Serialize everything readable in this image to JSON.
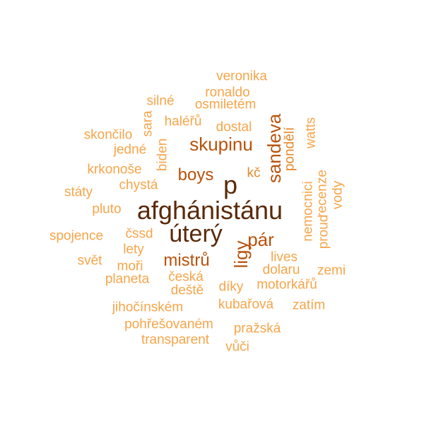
{
  "colors": {
    "level1": "#f6a54a",
    "level2": "#e3892b",
    "level3": "#b8520c",
    "level4": "#5a2a0a"
  },
  "words": [
    {
      "text": "afghánistánu",
      "weight": 1.0,
      "color_level": 4,
      "vertical": false
    },
    {
      "text": "úterý",
      "weight": 0.95,
      "color_level": 4,
      "vertical": false
    },
    {
      "text": "p",
      "weight": 0.9,
      "color_level": 4,
      "vertical": false
    },
    {
      "text": "pár",
      "weight": 0.75,
      "color_level": 3,
      "vertical": false
    },
    {
      "text": "ligy",
      "weight": 0.75,
      "color_level": 3,
      "vertical": true
    },
    {
      "text": "sandeva",
      "weight": 0.7,
      "color_level": 3,
      "vertical": true
    },
    {
      "text": "skupinu",
      "weight": 0.65,
      "color_level": 3,
      "vertical": false
    },
    {
      "text": "boys",
      "weight": 0.65,
      "color_level": 3,
      "vertical": false
    },
    {
      "text": "mistrů",
      "weight": 0.65,
      "color_level": 3,
      "vertical": false
    },
    {
      "text": "veronika",
      "weight": 0.35,
      "color_level": 1,
      "vertical": false
    },
    {
      "text": "ronaldo",
      "weight": 0.35,
      "color_level": 1,
      "vertical": false
    },
    {
      "text": "osmiletém",
      "weight": 0.35,
      "color_level": 1,
      "vertical": false
    },
    {
      "text": "silné",
      "weight": 0.35,
      "color_level": 1,
      "vertical": false
    },
    {
      "text": "haléřů",
      "weight": 0.35,
      "color_level": 1,
      "vertical": false
    },
    {
      "text": "dostal",
      "weight": 0.35,
      "color_level": 1,
      "vertical": false
    },
    {
      "text": "skončilo",
      "weight": 0.35,
      "color_level": 1,
      "vertical": false
    },
    {
      "text": "sara",
      "weight": 0.35,
      "color_level": 1,
      "vertical": true
    },
    {
      "text": "jedné",
      "weight": 0.35,
      "color_level": 1,
      "vertical": false
    },
    {
      "text": "biden",
      "weight": 0.35,
      "color_level": 1,
      "vertical": true
    },
    {
      "text": "krkonoše",
      "weight": 0.35,
      "color_level": 1,
      "vertical": false
    },
    {
      "text": "chystá",
      "weight": 0.35,
      "color_level": 1,
      "vertical": false
    },
    {
      "text": "státy",
      "weight": 0.35,
      "color_level": 1,
      "vertical": false
    },
    {
      "text": "pluto",
      "weight": 0.35,
      "color_level": 1,
      "vertical": false
    },
    {
      "text": "spojence",
      "weight": 0.35,
      "color_level": 1,
      "vertical": false
    },
    {
      "text": "čssd",
      "weight": 0.35,
      "color_level": 1,
      "vertical": false
    },
    {
      "text": "lety",
      "weight": 0.35,
      "color_level": 1,
      "vertical": false
    },
    {
      "text": "svět",
      "weight": 0.35,
      "color_level": 1,
      "vertical": false
    },
    {
      "text": "moři",
      "weight": 0.35,
      "color_level": 1,
      "vertical": false
    },
    {
      "text": "planeta",
      "weight": 0.35,
      "color_level": 1,
      "vertical": false
    },
    {
      "text": "česká",
      "weight": 0.35,
      "color_level": 1,
      "vertical": false
    },
    {
      "text": "deště",
      "weight": 0.35,
      "color_level": 1,
      "vertical": false
    },
    {
      "text": "díky",
      "weight": 0.35,
      "color_level": 1,
      "vertical": false
    },
    {
      "text": "motorkářů",
      "weight": 0.35,
      "color_level": 1,
      "vertical": false
    },
    {
      "text": "jihočínském",
      "weight": 0.35,
      "color_level": 1,
      "vertical": false
    },
    {
      "text": "kubařová",
      "weight": 0.35,
      "color_level": 1,
      "vertical": false
    },
    {
      "text": "zatím",
      "weight": 0.35,
      "color_level": 1,
      "vertical": false
    },
    {
      "text": "pohřešovaném",
      "weight": 0.35,
      "color_level": 1,
      "vertical": false
    },
    {
      "text": "pražská",
      "weight": 0.35,
      "color_level": 1,
      "vertical": false
    },
    {
      "text": "transparent",
      "weight": 0.35,
      "color_level": 1,
      "vertical": false
    },
    {
      "text": "vůči",
      "weight": 0.35,
      "color_level": 1,
      "vertical": false
    },
    {
      "text": "kč",
      "weight": 0.35,
      "color_level": 2,
      "vertical": false
    },
    {
      "text": "pondělí",
      "weight": 0.35,
      "color_level": 2,
      "vertical": true
    },
    {
      "text": "watts",
      "weight": 0.35,
      "color_level": 1,
      "vertical": true
    },
    {
      "text": "nemocnici",
      "weight": 0.35,
      "color_level": 1,
      "vertical": true
    },
    {
      "text": "recenze",
      "weight": 0.35,
      "color_level": 1,
      "vertical": true
    },
    {
      "text": "proud",
      "weight": 0.35,
      "color_level": 1,
      "vertical": true
    },
    {
      "text": "vody",
      "weight": 0.35,
      "color_level": 1,
      "vertical": true
    },
    {
      "text": "lives",
      "weight": 0.35,
      "color_level": 1,
      "vertical": false
    },
    {
      "text": "dolaru",
      "weight": 0.35,
      "color_level": 1,
      "vertical": false
    },
    {
      "text": "zemi",
      "weight": 0.35,
      "color_level": 1,
      "vertical": false
    }
  ]
}
